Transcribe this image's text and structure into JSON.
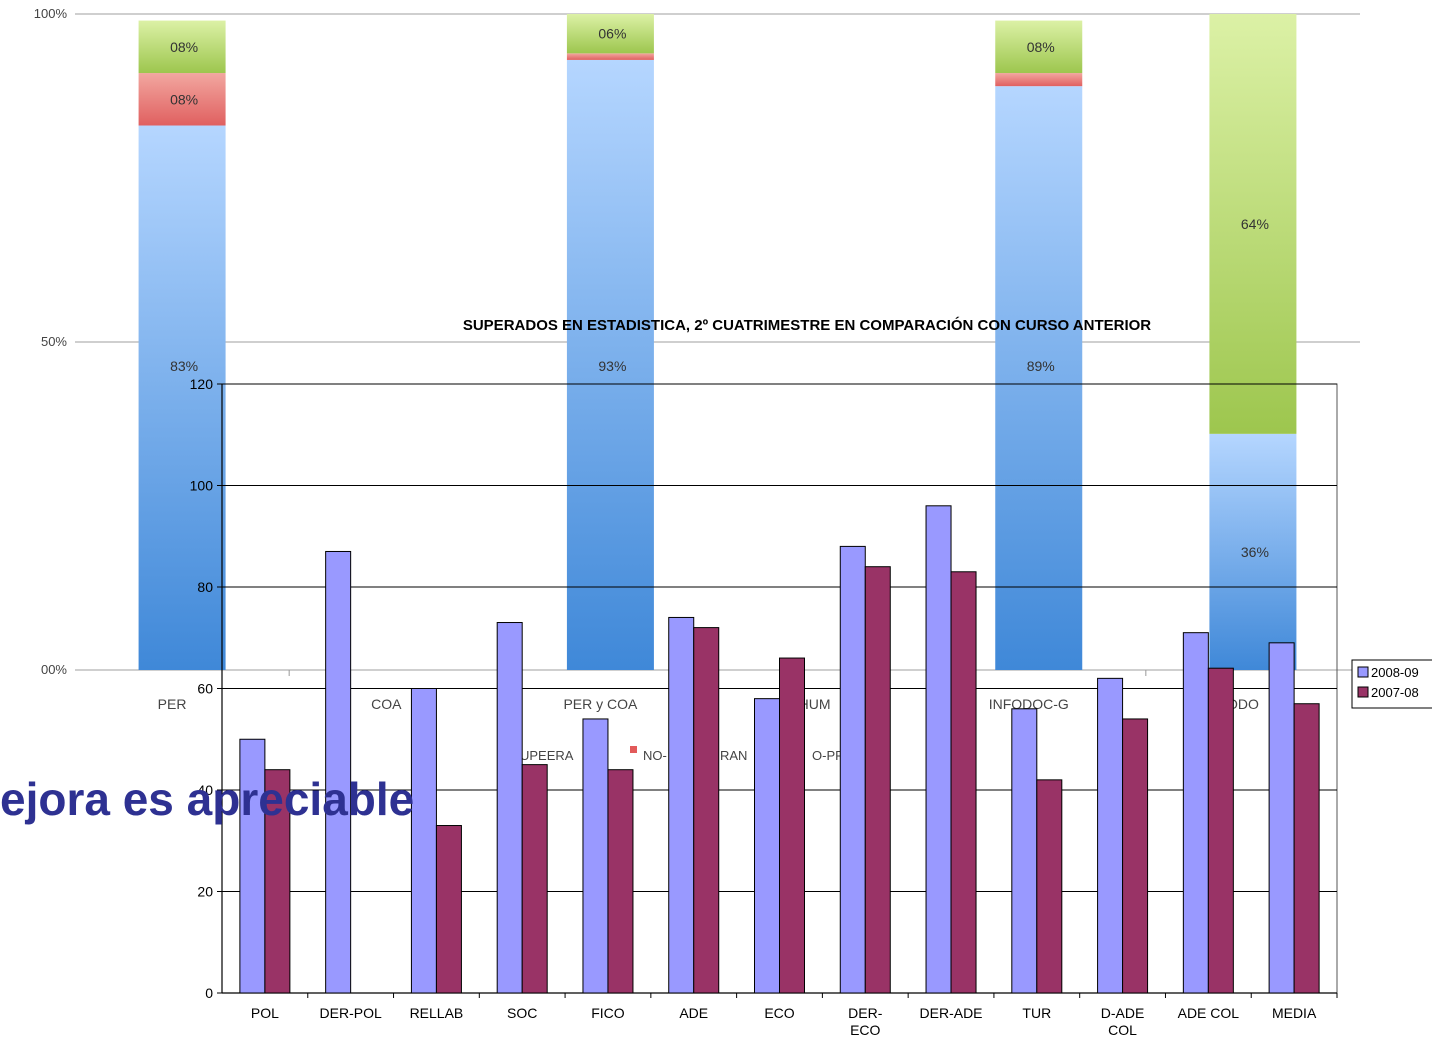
{
  "heading": "ejora es apreciable",
  "colors": {
    "superan": "#4f93dc",
    "no_superan": "#e25a5a",
    "no_presentado": "#9cc84c",
    "s2009": "#9999ff",
    "s2008": "#993366"
  },
  "chart_data": [
    {
      "type": "bar",
      "stacked": true,
      "title": "",
      "y_tick_labels": [
        "00%",
        "50%",
        "100%"
      ],
      "categories": [
        "PER",
        "COA",
        "PER y COA",
        "HUM",
        "INFODOC-G",
        "INFODOC"
      ],
      "series": [
        {
          "name": "SUPEERAN",
          "values": [
            83,
            null,
            93,
            null,
            89,
            36
          ],
          "labels": [
            "83%",
            "",
            "93%",
            "",
            "89%",
            "36%"
          ]
        },
        {
          "name": "NO-SUPERAN",
          "values": [
            8,
            null,
            1,
            null,
            2,
            0
          ],
          "labels": [
            "08%",
            "",
            "",
            "",
            "",
            ""
          ]
        },
        {
          "name": "NO-PRESENTADO",
          "values": [
            8,
            null,
            6,
            null,
            8,
            64
          ],
          "labels": [
            "08%",
            "",
            "06%",
            "",
            "08%",
            "64%"
          ]
        }
      ],
      "visible_labels": {
        "categories": [
          "PER",
          "COA",
          "PER y COA",
          "HUM",
          "INFODOC-G",
          "ODO"
        ],
        "legend": [
          "UPEERA",
          "NO-",
          "RAN",
          "O-PRE"
        ]
      }
    },
    {
      "type": "bar",
      "title": "SUPERADOS EN ESTADISTICA, 2º CUATRIMESTRE EN COMPARACIÓN CON CURSO ANTERIOR",
      "categories": [
        "POL",
        "DER-POL",
        "RELLAB",
        "SOC",
        "FICO",
        "ADE",
        "ECO",
        "DER-ECO",
        "DER-ADE",
        "TUR",
        "D-ADE COL",
        "ADE COL",
        "MEDIA"
      ],
      "category_lines": [
        [
          "POL"
        ],
        [
          "DER-POL"
        ],
        [
          "RELLAB"
        ],
        [
          "SOC"
        ],
        [
          "FICO"
        ],
        [
          "ADE"
        ],
        [
          "ECO"
        ],
        [
          "DER-",
          "ECO"
        ],
        [
          "DER-ADE"
        ],
        [
          "TUR"
        ],
        [
          "D-ADE",
          "COL"
        ],
        [
          "ADE COL"
        ],
        [
          "MEDIA"
        ]
      ],
      "ylim": [
        0,
        120
      ],
      "yticks": [
        "0",
        "20",
        "40",
        "60",
        "80",
        "100",
        "120"
      ],
      "grid": true,
      "legend_position": "right",
      "series": [
        {
          "name": "2008-09",
          "values": [
            50,
            87,
            60,
            73,
            54,
            74,
            58,
            88,
            96,
            56,
            62,
            71,
            69
          ]
        },
        {
          "name": "2007-08",
          "values": [
            44,
            null,
            33,
            45,
            44,
            72,
            66,
            84,
            83,
            42,
            54,
            64,
            57
          ]
        }
      ],
      "visible_labels": {
        "legend": [
          "2008-09",
          "2007-08"
        ]
      }
    }
  ]
}
